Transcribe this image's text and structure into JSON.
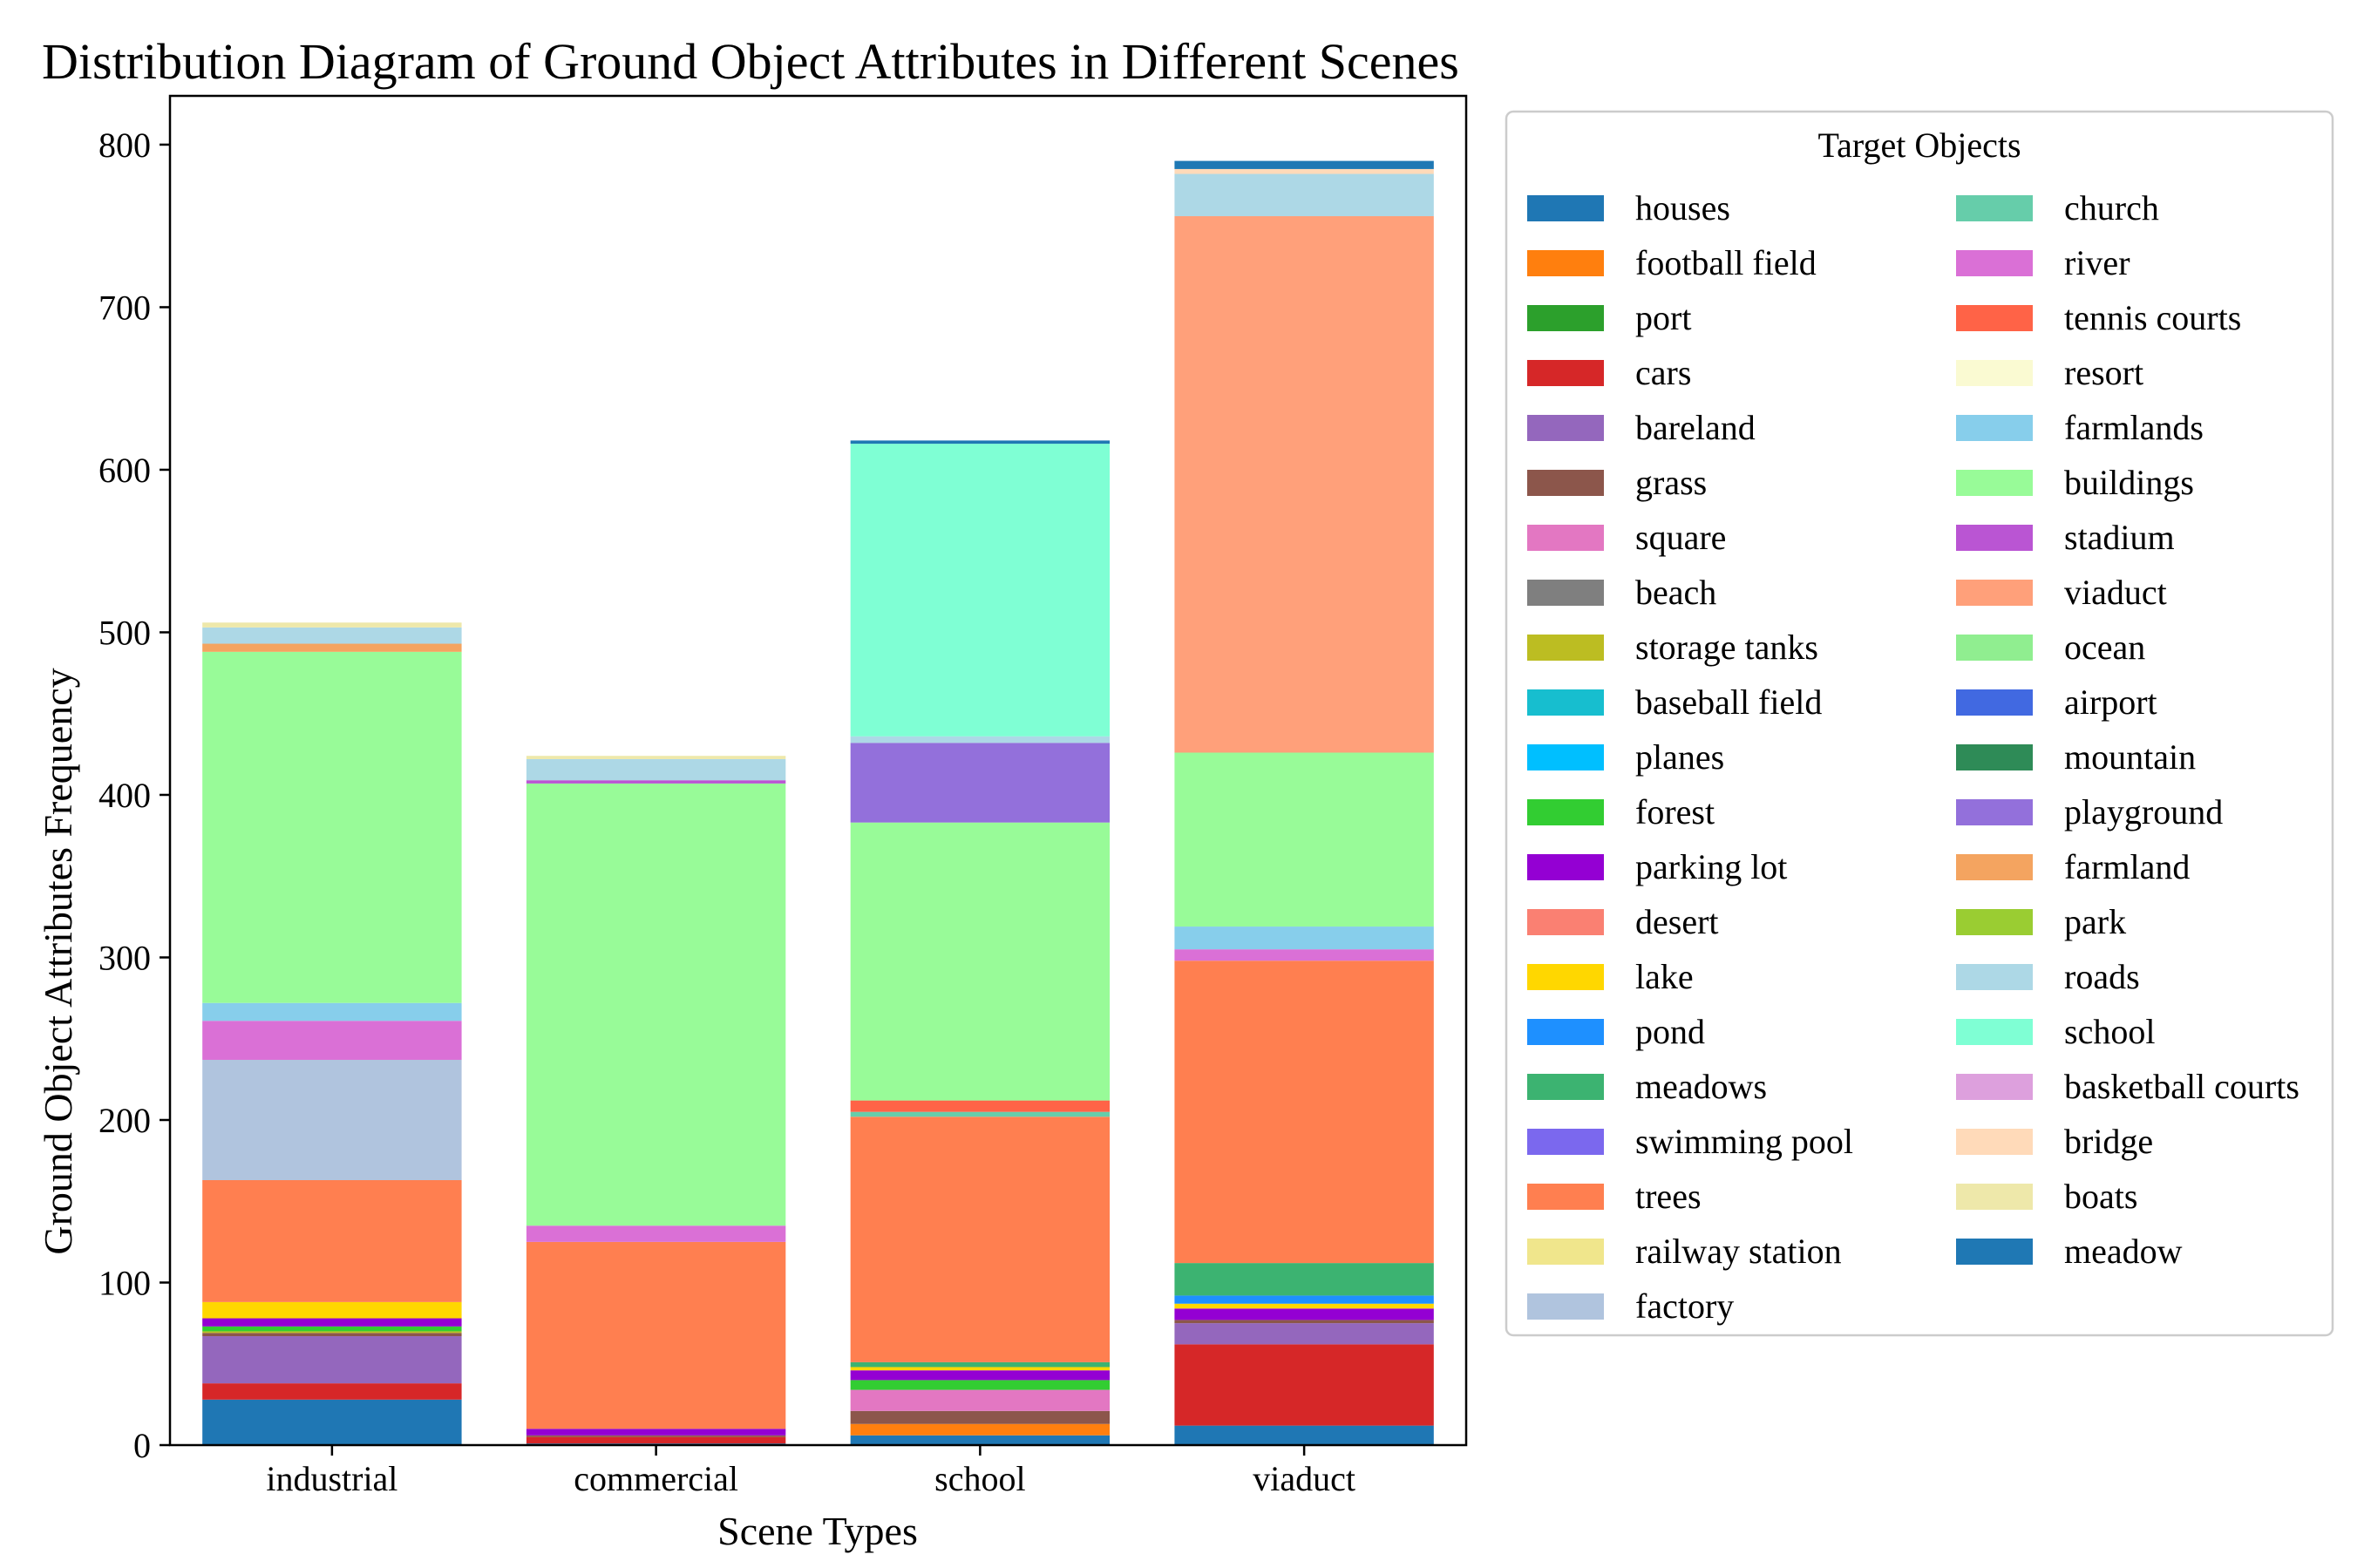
{
  "chart_data": {
    "type": "bar",
    "stacked": true,
    "title": "Distribution Diagram of Ground Object Attributes in Different Scenes",
    "xlabel": "Scene Types",
    "ylabel": "Ground Object Attributes Frequency",
    "ylim": [
      0,
      830
    ],
    "yticks": [
      0,
      100,
      200,
      300,
      400,
      500,
      600,
      700,
      800
    ],
    "categories": [
      "industrial",
      "commercial",
      "school",
      "viaduct"
    ],
    "legend_title": "Target Objects",
    "legend_position": "right",
    "series": [
      {
        "name": "houses",
        "color": "#1f77b4",
        "values": [
          28,
          1,
          6,
          12
        ]
      },
      {
        "name": "football field",
        "color": "#ff7f0e",
        "values": [
          0,
          0,
          7,
          0
        ]
      },
      {
        "name": "port",
        "color": "#2ca02c",
        "values": [
          0,
          0,
          0,
          0
        ]
      },
      {
        "name": "cars",
        "color": "#d62728",
        "values": [
          10,
          4,
          0,
          50
        ]
      },
      {
        "name": "bareland",
        "color": "#9467bd",
        "values": [
          29,
          0,
          0,
          13
        ]
      },
      {
        "name": "grass",
        "color": "#8c564b",
        "values": [
          2,
          1,
          8,
          2
        ]
      },
      {
        "name": "square",
        "color": "#e377c2",
        "values": [
          0,
          0,
          13,
          0
        ]
      },
      {
        "name": "beach",
        "color": "#7f7f7f",
        "values": [
          0,
          0,
          0,
          0
        ]
      },
      {
        "name": "storage tanks",
        "color": "#bcbd22",
        "values": [
          1,
          0,
          0,
          0
        ]
      },
      {
        "name": "baseball field",
        "color": "#17becf",
        "values": [
          0,
          0,
          0,
          0
        ]
      },
      {
        "name": "planes",
        "color": "#00bfff",
        "values": [
          0,
          0,
          0,
          0
        ]
      },
      {
        "name": "forest",
        "color": "#32cd32",
        "values": [
          3,
          0,
          6,
          0
        ]
      },
      {
        "name": "parking lot",
        "color": "#9400d3",
        "values": [
          5,
          4,
          6,
          7
        ]
      },
      {
        "name": "desert",
        "color": "#fa8072",
        "values": [
          0,
          0,
          0,
          0
        ]
      },
      {
        "name": "lake",
        "color": "#ffd700",
        "values": [
          10,
          0,
          2,
          3
        ]
      },
      {
        "name": "pond",
        "color": "#1e90ff",
        "values": [
          0,
          0,
          0,
          5
        ]
      },
      {
        "name": "meadows",
        "color": "#3cb371",
        "values": [
          0,
          0,
          3,
          20
        ]
      },
      {
        "name": "swimming pool",
        "color": "#7b68ee",
        "values": [
          0,
          0,
          0,
          0
        ]
      },
      {
        "name": "trees",
        "color": "#ff7f50",
        "values": [
          75,
          115,
          151,
          186
        ]
      },
      {
        "name": "railway station",
        "color": "#f0e68c",
        "values": [
          0,
          0,
          0,
          0
        ]
      },
      {
        "name": "factory",
        "color": "#b0c4de",
        "values": [
          74,
          0,
          0,
          0
        ]
      },
      {
        "name": "church",
        "color": "#66cdaa",
        "values": [
          0,
          0,
          3,
          0
        ]
      },
      {
        "name": "river",
        "color": "#da70d6",
        "values": [
          24,
          10,
          0,
          7
        ]
      },
      {
        "name": "tennis courts",
        "color": "#ff6347",
        "values": [
          0,
          0,
          7,
          0
        ]
      },
      {
        "name": "resort",
        "color": "#fafad2",
        "values": [
          0,
          0,
          0,
          0
        ]
      },
      {
        "name": "farmlands",
        "color": "#87ceeb",
        "values": [
          11,
          0,
          0,
          14
        ]
      },
      {
        "name": "buildings",
        "color": "#98fb98",
        "values": [
          216,
          272,
          171,
          107
        ]
      },
      {
        "name": "stadium",
        "color": "#ba55d3",
        "values": [
          0,
          2,
          0,
          0
        ]
      },
      {
        "name": "viaduct",
        "color": "#ffa07a",
        "values": [
          0,
          0,
          0,
          330
        ]
      },
      {
        "name": "ocean",
        "color": "#90ee90",
        "values": [
          0,
          0,
          0,
          0
        ]
      },
      {
        "name": "airport",
        "color": "#4169e1",
        "values": [
          0,
          0,
          0,
          0
        ]
      },
      {
        "name": "mountain",
        "color": "#2e8b57",
        "values": [
          0,
          0,
          0,
          0
        ]
      },
      {
        "name": "playground",
        "color": "#9370db",
        "values": [
          0,
          0,
          49,
          0
        ]
      },
      {
        "name": "farmland",
        "color": "#f4a460",
        "values": [
          5,
          0,
          0,
          0
        ]
      },
      {
        "name": "park",
        "color": "#9acd32",
        "values": [
          0,
          0,
          0,
          0
        ]
      },
      {
        "name": "roads",
        "color": "#add8e6",
        "values": [
          10,
          13,
          4,
          26
        ]
      },
      {
        "name": "school",
        "color": "#7fffd4",
        "values": [
          0,
          0,
          180,
          0
        ]
      },
      {
        "name": "basketball courts",
        "color": "#dda0dd",
        "values": [
          0,
          0,
          0,
          0
        ]
      },
      {
        "name": "bridge",
        "color": "#ffdab9",
        "values": [
          0,
          0,
          0,
          3
        ]
      },
      {
        "name": "boats",
        "color": "#eee8aa",
        "values": [
          3,
          2,
          0,
          0
        ]
      },
      {
        "name": "meadow",
        "color": "#1f78b4",
        "values": [
          0,
          0,
          2,
          5
        ]
      }
    ]
  }
}
